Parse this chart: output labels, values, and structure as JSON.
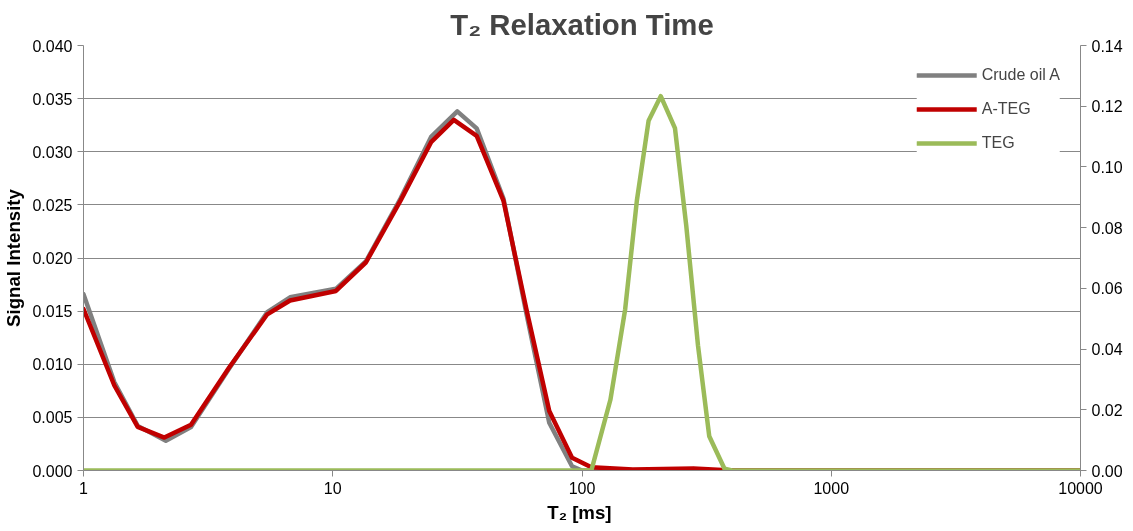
{
  "chart_data": {
    "type": "line",
    "title": "T₂ Relaxation Time",
    "xlabel": "T₂  [ms]",
    "ylabel": "Signal Intensity",
    "log": "x",
    "xlim": [
      1,
      10000
    ],
    "xticks": [
      1,
      10,
      100,
      1000,
      10000
    ],
    "ylim": [
      0,
      0.04
    ],
    "yticks": [
      {
        "value": 0,
        "label": "0.000"
      },
      {
        "value": 0.005,
        "label": "0.005"
      },
      {
        "value": 0.01,
        "label": "0.010"
      },
      {
        "value": 0.015,
        "label": "0.015"
      },
      {
        "value": 0.02,
        "label": "0.020"
      },
      {
        "value": 0.025,
        "label": "0.025"
      },
      {
        "value": 0.03,
        "label": "0.030"
      },
      {
        "value": 0.035,
        "label": "0.035"
      },
      {
        "value": 0.04,
        "label": "0.040"
      }
    ],
    "y2lim": [
      0,
      0.14
    ],
    "y2ticks": [
      {
        "value": 0,
        "label": "0.00"
      },
      {
        "value": 0.02,
        "label": "0.02"
      },
      {
        "value": 0.04,
        "label": "0.04"
      },
      {
        "value": 0.06,
        "label": "0.06"
      },
      {
        "value": 0.08,
        "label": "0.08"
      },
      {
        "value": 0.1,
        "label": "0.10"
      },
      {
        "value": 0.12,
        "label": "0.12"
      },
      {
        "value": 0.14,
        "label": "0.14"
      }
    ],
    "grid": "y",
    "legend": "top right",
    "marker": "none",
    "line_style": "solid",
    "series": [
      {
        "name": "Crude oil A",
        "color": "#808080",
        "x": [
          1,
          1.33,
          1.65,
          2.14,
          2.7,
          3.84,
          5.46,
          6.74,
          10.3,
          13.6,
          18.7,
          24.8,
          31.6,
          37.8,
          48.4,
          59.8,
          73.9,
          91.2,
          100,
          300,
          1000,
          10000
        ],
        "values": [
          0.0166,
          0.0083,
          0.0042,
          0.0028,
          0.0041,
          0.0096,
          0.0149,
          0.0163,
          0.0171,
          0.0197,
          0.0256,
          0.0314,
          0.0338,
          0.0322,
          0.0256,
          0.0148,
          0.0045,
          0.0004,
          0,
          0,
          0,
          0
        ]
      },
      {
        "name": "A-TEG",
        "color": "#c00000",
        "x": [
          1,
          1.33,
          1.65,
          2.11,
          2.7,
          3.84,
          5.46,
          6.74,
          10.3,
          13.6,
          18.7,
          24.8,
          30.6,
          37.8,
          48.4,
          59.8,
          73.9,
          91.2,
          109,
          160,
          280,
          400,
          1000,
          10000
        ],
        "values": [
          0.0152,
          0.008,
          0.0041,
          0.0031,
          0.0043,
          0.0097,
          0.0147,
          0.016,
          0.0169,
          0.0196,
          0.0254,
          0.0309,
          0.033,
          0.0315,
          0.0254,
          0.0152,
          0.0056,
          0.0012,
          0.0003,
          0.0001,
          0.0002,
          0,
          0,
          0
        ]
      },
      {
        "name": "TEG",
        "color": "#9bbb59",
        "axis": "y2",
        "x": [
          1,
          109,
          130,
          149,
          166,
          185,
          207,
          236,
          262,
          292,
          324,
          373,
          400,
          10000
        ],
        "values": [
          0,
          0,
          0.0233,
          0.0531,
          0.0889,
          0.1152,
          0.1233,
          0.1128,
          0.0806,
          0.0412,
          0.0113,
          0.0006,
          0,
          0
        ]
      }
    ]
  }
}
